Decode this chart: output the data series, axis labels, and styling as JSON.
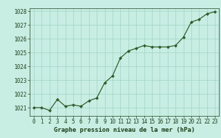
{
  "x": [
    0,
    1,
    2,
    3,
    4,
    5,
    6,
    7,
    8,
    9,
    10,
    11,
    12,
    13,
    14,
    15,
    16,
    17,
    18,
    19,
    20,
    21,
    22,
    23
  ],
  "y": [
    1021.0,
    1021.0,
    1020.8,
    1021.6,
    1021.1,
    1021.2,
    1021.1,
    1021.5,
    1021.7,
    1022.8,
    1023.3,
    1024.6,
    1025.1,
    1025.3,
    1025.5,
    1025.4,
    1025.4,
    1025.4,
    1025.5,
    1026.1,
    1027.2,
    1027.4,
    1027.8,
    1027.95
  ],
  "line_color": "#2d5a27",
  "marker_color": "#2d5a27",
  "bg_color": "#c8ede3",
  "grid_color": "#9ed4c4",
  "xlabel": "Graphe pression niveau de la mer (hPa)",
  "xlabel_color": "#1a3d17",
  "tick_color": "#1a3d17",
  "ylim": [
    1020.4,
    1028.2
  ],
  "yticks": [
    1021,
    1022,
    1023,
    1024,
    1025,
    1026,
    1027,
    1028
  ],
  "xlim": [
    -0.5,
    23.5
  ],
  "xticks": [
    0,
    1,
    2,
    3,
    4,
    5,
    6,
    7,
    8,
    9,
    10,
    11,
    12,
    13,
    14,
    15,
    16,
    17,
    18,
    19,
    20,
    21,
    22,
    23
  ],
  "axis_fontsize": 5.5,
  "label_fontsize": 6.5
}
